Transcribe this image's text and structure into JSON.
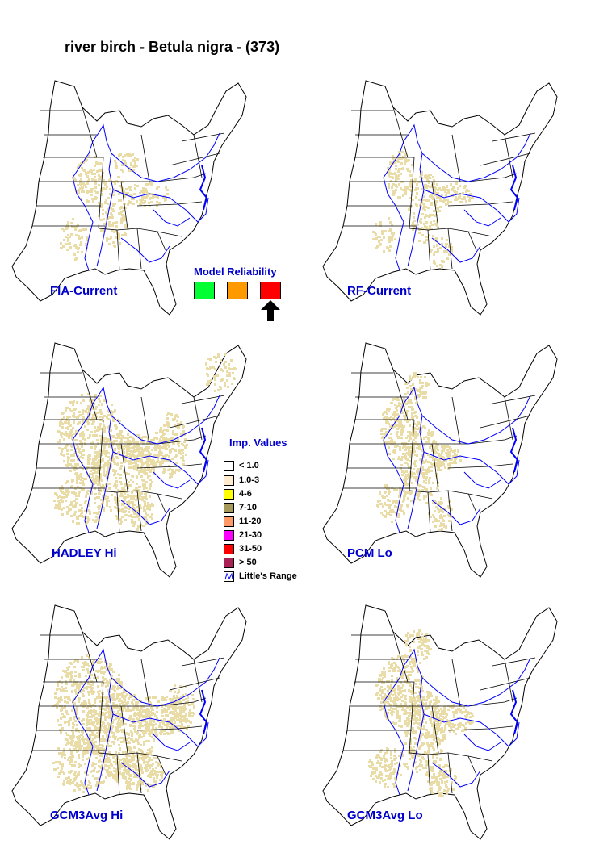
{
  "title": "river birch - Betula nigra - (373)",
  "colors": {
    "importance_fill": "#eadca6",
    "range_line": "#0000ff",
    "label_text": "#0000cc"
  },
  "maps": [
    {
      "label": "FIA-Current"
    },
    {
      "label": "RF-Current"
    },
    {
      "label": "HADLEY Hi"
    },
    {
      "label": "PCM Lo"
    },
    {
      "label": "GCM3Avg Hi"
    },
    {
      "label": "GCM3Avg Lo"
    }
  ],
  "model_reliability": {
    "title": "Model Reliability",
    "levels": [
      {
        "color": "#00ff33",
        "icon": "green-box"
      },
      {
        "color": "#ff9900",
        "icon": "orange-box"
      },
      {
        "color": "#ff0000",
        "icon": "red-box",
        "selected": true
      }
    ],
    "indicator_icon": "arrow-up-icon"
  },
  "imp_values": {
    "title": "Imp. Values",
    "items": [
      {
        "label": "< 1.0",
        "color": "#ffffff"
      },
      {
        "label": "1.0-3",
        "color": "#ffebcd"
      },
      {
        "label": "4-6",
        "color": "#ffff00"
      },
      {
        "label": "7-10",
        "color": "#a59a5a"
      },
      {
        "label": "11-20",
        "color": "#ff9966"
      },
      {
        "label": "21-30",
        "color": "#ff00ff"
      },
      {
        "label": "31-50",
        "color": "#ff0000"
      },
      {
        "label": "> 50",
        "color": "#aa2255"
      },
      {
        "label": "Little's Range",
        "icon": "range-line-icon"
      }
    ]
  }
}
